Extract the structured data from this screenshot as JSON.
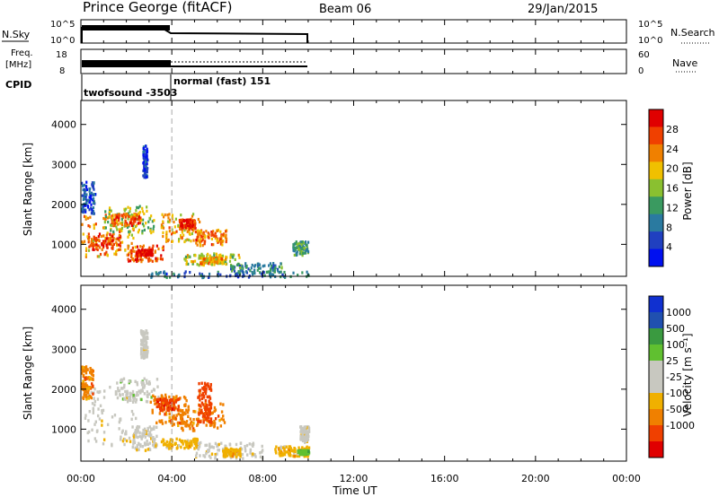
{
  "header": {
    "station": "Prince George (fitACF)",
    "beam": "Beam 06",
    "date": "29/Jan/2015"
  },
  "strip_labels": {
    "nsky": "N.Sky",
    "nsky_ticks": [
      "10^5",
      "10^0"
    ],
    "nsearch": "N.Search",
    "freq": "Freq.",
    "freq_unit": "[MHz]",
    "freq_ticks": [
      "18",
      "8"
    ],
    "nave": "Nave",
    "nave_ticks": [
      "60",
      "0"
    ],
    "cpid": "CPID",
    "cpid_modes": [
      "twofsound -3503",
      "normal (fast) 151"
    ]
  },
  "colors": {
    "power_scale": [
      "#0010f0",
      "#2040c0",
      "#2a7aa0",
      "#3a9a60",
      "#8ac030",
      "#f0c000",
      "#f08000",
      "#f04000",
      "#e00000"
    ],
    "velocity_scale": [
      "#e00000",
      "#f04000",
      "#f08000",
      "#f0b000",
      "#c8c8c0",
      "#c8c8c0",
      "#60c030",
      "#3a9a40",
      "#2050b0",
      "#1030d0"
    ]
  },
  "chart_data": [
    {
      "type": "heatmap",
      "name": "power",
      "ylabel": "Slant Range [km]",
      "yticks": [
        "1000",
        "2000",
        "3000",
        "4000"
      ],
      "ylim": [
        200,
        4600
      ],
      "xlim_hours": [
        0,
        24
      ],
      "colorbar_label": "Power [dB]",
      "colorbar_ticks": [
        "4",
        "8",
        "12",
        "16",
        "20",
        "24",
        "28"
      ],
      "clim": [
        0,
        32
      ],
      "blobs": [
        {
          "t0": 0.0,
          "t1": 2.3,
          "r0": 700,
          "r1": 1800,
          "v": 22
        },
        {
          "t0": 0.3,
          "t1": 1.7,
          "r0": 900,
          "r1": 1300,
          "v": 27
        },
        {
          "t0": 1.0,
          "t1": 3.2,
          "r0": 1300,
          "r1": 2000,
          "v": 16
        },
        {
          "t0": 1.3,
          "t1": 2.6,
          "r0": 1500,
          "r1": 1800,
          "v": 25
        },
        {
          "t0": 2.0,
          "t1": 3.6,
          "r0": 600,
          "r1": 1000,
          "v": 26
        },
        {
          "t0": 2.4,
          "t1": 3.1,
          "r0": 750,
          "r1": 900,
          "v": 30
        },
        {
          "t0": 3.5,
          "t1": 5.2,
          "r0": 1100,
          "r1": 1800,
          "v": 21
        },
        {
          "t0": 4.3,
          "t1": 5.0,
          "r0": 1400,
          "r1": 1650,
          "v": 28
        },
        {
          "t0": 5.0,
          "t1": 6.4,
          "r0": 1000,
          "r1": 1400,
          "v": 24
        },
        {
          "t0": 4.5,
          "t1": 7.0,
          "r0": 500,
          "r1": 800,
          "v": 17
        },
        {
          "t0": 5.2,
          "t1": 6.2,
          "r0": 550,
          "r1": 700,
          "v": 22
        },
        {
          "t0": 6.5,
          "t1": 8.8,
          "r0": 320,
          "r1": 560,
          "v": 10
        },
        {
          "t0": 3.0,
          "t1": 10.0,
          "r0": 200,
          "r1": 350,
          "v": 8
        },
        {
          "t0": 0.0,
          "t1": 0.6,
          "r0": 1800,
          "r1": 2600,
          "v": 6
        },
        {
          "t0": 9.3,
          "t1": 10.0,
          "r0": 750,
          "r1": 1100,
          "v": 12
        },
        {
          "t0": 2.7,
          "t1": 2.9,
          "r0": 2700,
          "r1": 3500,
          "v": 4
        }
      ]
    },
    {
      "type": "heatmap",
      "name": "velocity",
      "ylabel": "Slant Range [km]",
      "yticks": [
        "1000",
        "2000",
        "3000",
        "4000"
      ],
      "ylim": [
        200,
        4600
      ],
      "xlim_hours": [
        0,
        24
      ],
      "colorbar_label": "Velocity [m s⁻¹]",
      "colorbar_ticks": [
        "1000",
        "500",
        "100",
        "25",
        "-25",
        "-100",
        "-500",
        "-1000"
      ],
      "blobs": [
        {
          "t0": 0.0,
          "t1": 2.4,
          "r0": 600,
          "r1": 2100,
          "c": 4
        },
        {
          "t0": 0.0,
          "t1": 0.5,
          "r0": 1800,
          "r1": 2600,
          "c": 2
        },
        {
          "t0": 1.5,
          "t1": 3.5,
          "r0": 1700,
          "r1": 2300,
          "c": 5
        },
        {
          "t0": 2.2,
          "t1": 3.3,
          "r0": 500,
          "r1": 1100,
          "c": 4
        },
        {
          "t0": 3.0,
          "t1": 4.7,
          "r0": 1100,
          "r1": 1900,
          "c": 2
        },
        {
          "t0": 3.3,
          "t1": 4.3,
          "r0": 1500,
          "r1": 1800,
          "c": 1
        },
        {
          "t0": 4.3,
          "t1": 6.3,
          "r0": 1000,
          "r1": 1700,
          "c": 2
        },
        {
          "t0": 5.1,
          "t1": 5.7,
          "r0": 1200,
          "r1": 2200,
          "c": 1
        },
        {
          "t0": 3.5,
          "t1": 5.2,
          "r0": 550,
          "r1": 800,
          "c": 3
        },
        {
          "t0": 5.0,
          "t1": 8.0,
          "r0": 300,
          "r1": 700,
          "c": 4
        },
        {
          "t0": 6.2,
          "t1": 7.0,
          "r0": 350,
          "r1": 550,
          "c": 3
        },
        {
          "t0": 8.5,
          "t1": 10.0,
          "r0": 350,
          "r1": 600,
          "c": 3
        },
        {
          "t0": 9.6,
          "t1": 10.0,
          "r0": 700,
          "r1": 1100,
          "c": 4
        },
        {
          "t0": 9.5,
          "t1": 10.0,
          "r0": 400,
          "r1": 500,
          "c": 6
        },
        {
          "t0": 2.6,
          "t1": 2.9,
          "r0": 2800,
          "r1": 3500,
          "c": 4
        }
      ]
    }
  ],
  "time_axis": {
    "label": "Time UT",
    "ticks": [
      "00:00",
      "04:00",
      "08:00",
      "12:00",
      "16:00",
      "20:00",
      "00:00"
    ]
  },
  "mode_change_hour": 4.0,
  "data_end_hour": 10.0
}
